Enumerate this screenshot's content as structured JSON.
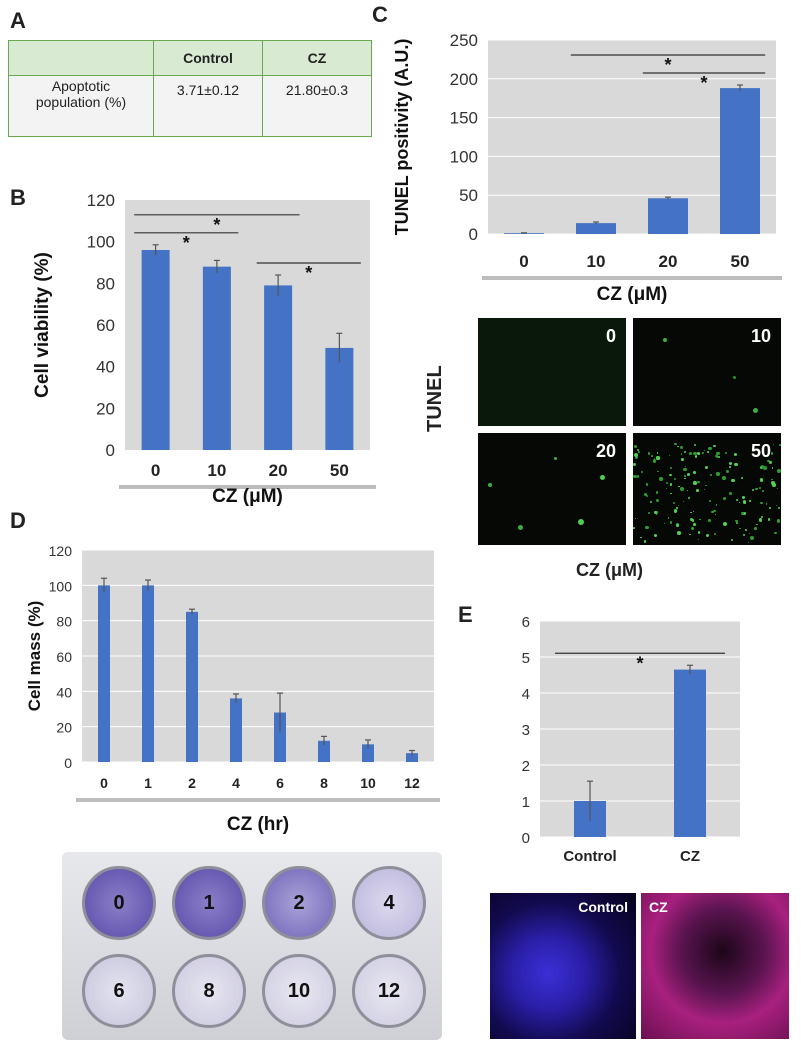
{
  "panels": {
    "A": "A",
    "B": "B",
    "C": "C",
    "D": "D",
    "E": "E"
  },
  "table": {
    "headers": [
      "",
      "Control",
      "CZ"
    ],
    "row_label_line1": "Apoptotic",
    "row_label_line2": "population (%)",
    "row_values": [
      "3.71±0.12",
      "21.80±0.3"
    ]
  },
  "chart_data": [
    {
      "id": "B",
      "type": "bar",
      "categories": [
        "0",
        "10",
        "20",
        "50"
      ],
      "values": [
        96,
        88,
        79,
        49
      ],
      "errors": [
        2.5,
        3,
        5,
        7
      ],
      "xlabel": "CZ (μM)",
      "ylabel": "Cell viability (%)",
      "ylim": [
        0,
        120
      ],
      "yticks": [
        0,
        20,
        40,
        60,
        80,
        100,
        120
      ],
      "significance": [
        {
          "from": 0,
          "to": 2,
          "mark": "*"
        },
        {
          "from": 0,
          "to": 1,
          "mark": "*"
        },
        {
          "from": 2,
          "to": 3,
          "mark": "*"
        }
      ],
      "grid": false,
      "bar_color": "#4472c4",
      "bg_color": "#d9d9d9"
    },
    {
      "id": "C",
      "type": "bar",
      "categories": [
        "0",
        "10",
        "20",
        "50"
      ],
      "values": [
        1,
        14,
        46,
        188
      ],
      "errors": [
        0.5,
        1.5,
        1.5,
        4
      ],
      "xlabel": "CZ (μM)",
      "ylabel": "TUNEL positivity (A.U.)",
      "ylim": [
        0,
        250
      ],
      "yticks": [
        0,
        50,
        100,
        150,
        200,
        250
      ],
      "significance": [
        {
          "from": 1,
          "to": 3,
          "mark": "*"
        },
        {
          "from": 2,
          "to": 3,
          "mark": "*"
        }
      ],
      "grid": true,
      "bar_color": "#4472c4",
      "bg_color": "#d9d9d9"
    },
    {
      "id": "D",
      "type": "bar",
      "categories": [
        "0",
        "1",
        "2",
        "4",
        "6",
        "8",
        "10",
        "12"
      ],
      "values": [
        100,
        100,
        85,
        36,
        28,
        12,
        10,
        5
      ],
      "errors": [
        4,
        3,
        1.5,
        2.5,
        11,
        2.5,
        2.5,
        1.5
      ],
      "xlabel": "CZ (hr)",
      "ylabel": "Cell mass (%)",
      "ylim": [
        0,
        120
      ],
      "yticks": [
        0,
        20,
        40,
        60,
        80,
        100,
        120
      ],
      "significance": [],
      "grid": true,
      "bar_color": "#4472c4",
      "bg_color": "#d9d9d9"
    },
    {
      "id": "E",
      "type": "bar",
      "categories": [
        "Control",
        "CZ"
      ],
      "values": [
        1,
        4.65
      ],
      "errors": [
        0.55,
        0.12
      ],
      "xlabel": "",
      "ylabel": "",
      "ylim": [
        0,
        6
      ],
      "yticks": [
        0,
        1,
        2,
        3,
        4,
        5,
        6
      ],
      "significance": [
        {
          "from": 0,
          "to": 1,
          "mark": "*"
        }
      ],
      "grid": true,
      "bar_color": "#4472c4",
      "bg_color": "#d9d9d9"
    }
  ],
  "tunel": {
    "side_label": "TUNEL",
    "xlabel": "CZ (μM)",
    "images": [
      "0",
      "10",
      "20",
      "50"
    ]
  },
  "plate": {
    "wells_top": [
      "0",
      "1",
      "2",
      "4"
    ],
    "wells_bottom": [
      "6",
      "8",
      "10",
      "12"
    ]
  },
  "fluorescence": {
    "left_label": "Control",
    "right_label": "CZ"
  }
}
